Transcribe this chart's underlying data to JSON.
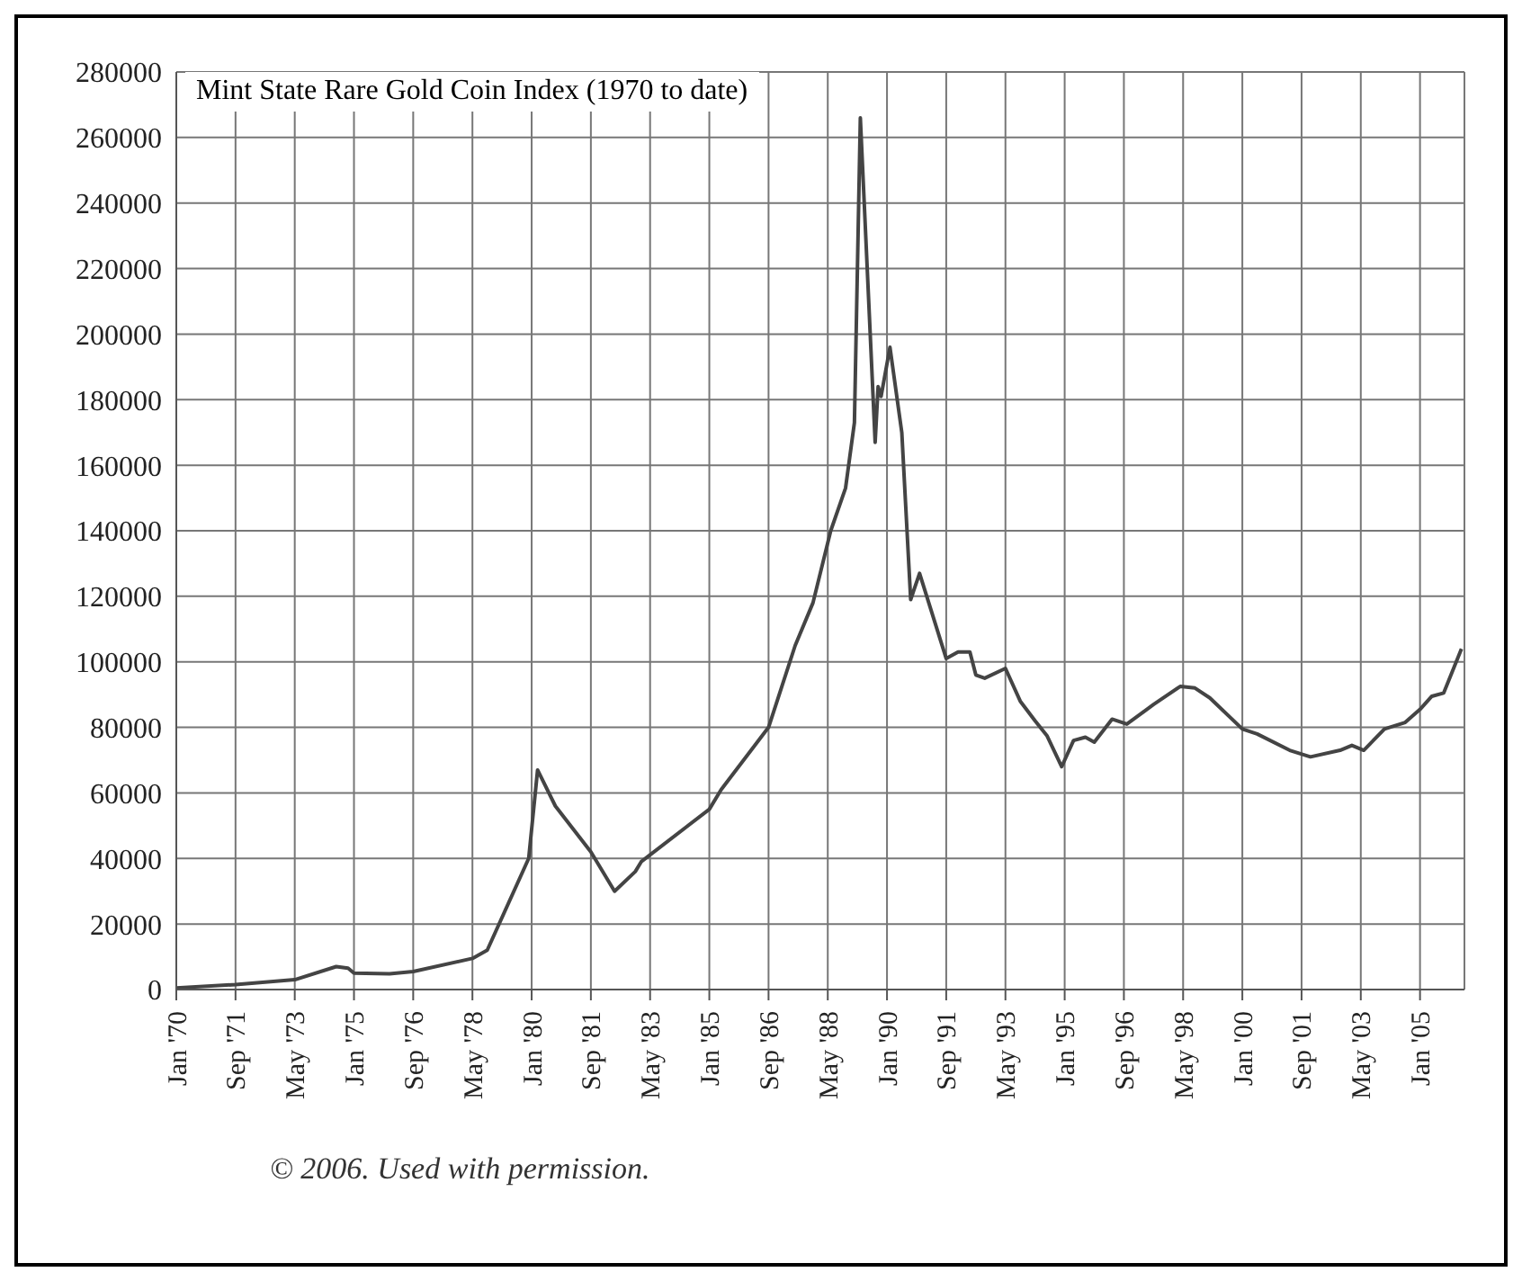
{
  "chart_data": {
    "type": "line",
    "title": "Mint State Rare Gold Coin Index (1970 to date)",
    "annotations": [
      "© 2006. Used with permission."
    ],
    "x": [
      "1970-01",
      "1971-09",
      "1973-05",
      "1974-07",
      "1974-11",
      "1975-01",
      "1976-01",
      "1976-09",
      "1978-05",
      "1978-10",
      "1979-12",
      "1980-03",
      "1980-09",
      "1981-09",
      "1982-05",
      "1982-12",
      "1983-02",
      "1985-01",
      "1985-05",
      "1986-09",
      "1987-06",
      "1987-12",
      "1988-06",
      "1988-11",
      "1989-02",
      "1989-04",
      "1989-09",
      "1989-10",
      "1989-11",
      "1990-02",
      "1990-06",
      "1990-09",
      "1990-12",
      "1991-09",
      "1992-01",
      "1992-05",
      "1992-07",
      "1992-10",
      "1993-05",
      "1993-10",
      "1994-03",
      "1994-07",
      "1994-12",
      "1995-04",
      "1995-08",
      "1995-11",
      "1996-05",
      "1996-10",
      "1997-07",
      "1998-04",
      "1998-09",
      "1999-02",
      "2000-01",
      "2000-06",
      "2001-05",
      "2001-12",
      "2002-10",
      "2003-02",
      "2003-06",
      "2004-01",
      "2004-08",
      "2005-01",
      "2005-05",
      "2005-09",
      "2006-03"
    ],
    "series": [
      {
        "color": "#444444",
        "values": [
          500,
          1500,
          3000,
          7000,
          6500,
          5000,
          4800,
          5500,
          9500,
          12000,
          40000,
          67000,
          56000,
          42000,
          30000,
          36000,
          39000,
          55000,
          61000,
          80000,
          105000,
          118000,
          140000,
          153000,
          173000,
          266000,
          167000,
          184000,
          181000,
          196000,
          170000,
          119000,
          127000,
          101000,
          103000,
          103000,
          96000,
          95000,
          98000,
          88000,
          82000,
          77500,
          68000,
          76000,
          77000,
          75500,
          82500,
          81000,
          87000,
          92500,
          92000,
          89000,
          79500,
          78000,
          73000,
          71000,
          73000,
          74500,
          73000,
          79500,
          81500,
          85500,
          89500,
          90500,
          104000
        ]
      }
    ],
    "xlim": [
      "1970-01",
      "2006-04"
    ],
    "xticks": [
      {
        "value": "1970-01",
        "label": "Jan '70"
      },
      {
        "value": "1971-09",
        "label": "Sep '71"
      },
      {
        "value": "1973-05",
        "label": "May '73"
      },
      {
        "value": "1975-01",
        "label": "Jan '75"
      },
      {
        "value": "1976-09",
        "label": "Sep '76"
      },
      {
        "value": "1978-05",
        "label": "May '78"
      },
      {
        "value": "1980-01",
        "label": "Jan '80"
      },
      {
        "value": "1981-09",
        "label": "Sep '81"
      },
      {
        "value": "1983-05",
        "label": "May '83"
      },
      {
        "value": "1985-01",
        "label": "Jan '85"
      },
      {
        "value": "1986-09",
        "label": "Sep '86"
      },
      {
        "value": "1988-05",
        "label": "May '88"
      },
      {
        "value": "1990-01",
        "label": "Jan '90"
      },
      {
        "value": "1991-09",
        "label": "Sep '91"
      },
      {
        "value": "1993-05",
        "label": "May '93"
      },
      {
        "value": "1995-01",
        "label": "Jan '95"
      },
      {
        "value": "1996-09",
        "label": "Sep '96"
      },
      {
        "value": "1998-05",
        "label": "May '98"
      },
      {
        "value": "2000-01",
        "label": "Jan '00"
      },
      {
        "value": "2001-09",
        "label": "Sep '01"
      },
      {
        "value": "2003-05",
        "label": "May '03"
      },
      {
        "value": "2005-01",
        "label": "Jan '05"
      }
    ],
    "ylim": [
      0,
      280000
    ],
    "yticks": [
      0,
      20000,
      40000,
      60000,
      80000,
      100000,
      120000,
      140000,
      160000,
      180000,
      200000,
      220000,
      240000,
      260000,
      280000
    ],
    "grid": true,
    "marker": "none",
    "line_style": "solid"
  }
}
